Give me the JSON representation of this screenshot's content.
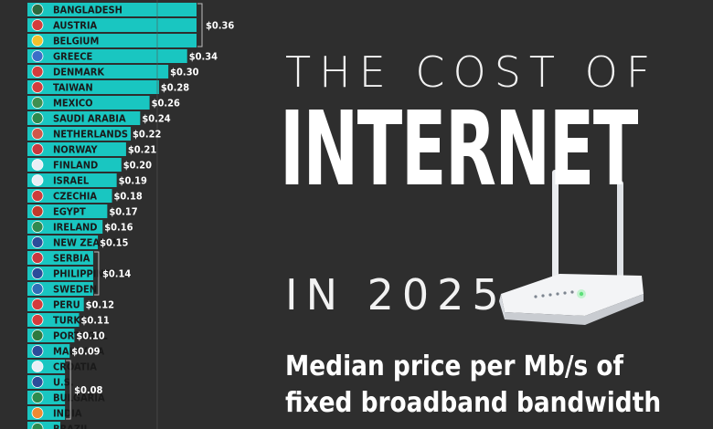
{
  "header": {
    "line1": "THE COST OF",
    "line2": "INTERNET",
    "line3": "IN 2025",
    "subtitle_line1": "Median price per Mb/s of",
    "subtitle_line2": "fixed broadband bandwidth"
  },
  "colors": {
    "bar": "#19c6c1",
    "background": "#2e2e2e",
    "text": "#ffffff",
    "label": "#1a1a1a"
  },
  "chart_data": {
    "type": "bar",
    "orientation": "horizontal",
    "title": "The Cost of Internet in 2025",
    "subtitle": "Median price per Mb/s of fixed broadband bandwidth",
    "xlabel": "",
    "ylabel": "",
    "categories": [
      "BANGLADESH",
      "AUSTRIA",
      "BELGIUM",
      "GREECE",
      "DENMARK",
      "TAIWAN",
      "MEXICO",
      "SAUDI ARABIA",
      "NETHERLANDS",
      "NORWAY",
      "FINLAND",
      "ISRAEL",
      "CZECHIA",
      "EGYPT",
      "IRELAND",
      "NEW ZEALAND",
      "SERBIA",
      "PHILIPPINES",
      "SWEDEN",
      "PERU",
      "TURKEY",
      "PORTUGAL",
      "MALAYSIA",
      "CROATIA",
      "U.S.",
      "BULGARIA",
      "INDIA",
      "BRAZIL"
    ],
    "values": [
      0.36,
      0.36,
      0.36,
      0.34,
      0.3,
      0.28,
      0.26,
      0.24,
      0.22,
      0.21,
      0.2,
      0.19,
      0.18,
      0.17,
      0.16,
      0.15,
      0.14,
      0.14,
      0.14,
      0.12,
      0.11,
      0.1,
      0.09,
      0.08,
      0.08,
      0.08,
      0.08,
      0.07
    ],
    "value_labels": [
      {
        "text": "$0.36",
        "rows": [
          0,
          2
        ]
      },
      {
        "text": "$0.34",
        "rows": [
          3,
          3
        ]
      },
      {
        "text": "$0.30",
        "rows": [
          4,
          4
        ]
      },
      {
        "text": "$0.28",
        "rows": [
          5,
          5
        ]
      },
      {
        "text": "$0.26",
        "rows": [
          6,
          6
        ]
      },
      {
        "text": "$0.24",
        "rows": [
          7,
          7
        ]
      },
      {
        "text": "$0.22",
        "rows": [
          8,
          8
        ]
      },
      {
        "text": "$0.21",
        "rows": [
          9,
          9
        ]
      },
      {
        "text": "$0.20",
        "rows": [
          10,
          10
        ]
      },
      {
        "text": "$0.19",
        "rows": [
          11,
          11
        ]
      },
      {
        "text": "$0.18",
        "rows": [
          12,
          12
        ]
      },
      {
        "text": "$0.17",
        "rows": [
          13,
          13
        ]
      },
      {
        "text": "$0.16",
        "rows": [
          14,
          14
        ]
      },
      {
        "text": "$0.15",
        "rows": [
          15,
          15
        ]
      },
      {
        "text": "$0.14",
        "rows": [
          16,
          18
        ]
      },
      {
        "text": "$0.12",
        "rows": [
          19,
          19
        ]
      },
      {
        "text": "$0.11",
        "rows": [
          20,
          20
        ]
      },
      {
        "text": "$0.10",
        "rows": [
          21,
          21
        ]
      },
      {
        "text": "$0.09",
        "rows": [
          22,
          22
        ]
      },
      {
        "text": "$0.08",
        "rows": [
          23,
          26
        ]
      }
    ]
  }
}
